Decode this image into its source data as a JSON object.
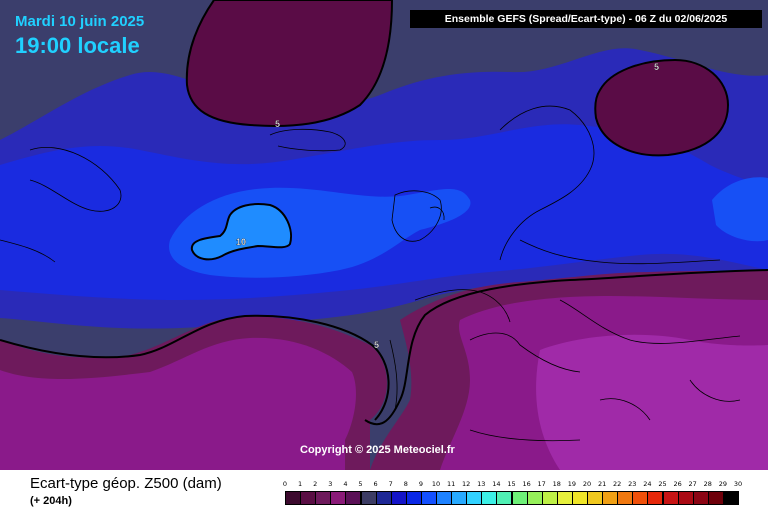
{
  "header": {
    "date": "Mardi 10 juin 2025",
    "time": "19:00 locale",
    "run": "Ensemble GEFS  (Spread/Ecart-type) - 06 Z du 02/06/2025"
  },
  "map": {
    "copyright": "Copyright © 2025 Meteociel.fr",
    "contour_labels": [
      "5",
      "5",
      "5",
      "10"
    ]
  },
  "footer": {
    "parameter": "Ecart-type géop. Z500 (dam)",
    "lead_time": "(+ 204h)"
  },
  "legend": {
    "ticks": [
      "0",
      "1",
      "2",
      "3",
      "4",
      "5",
      "6",
      "7",
      "8",
      "9",
      "10",
      "11",
      "12",
      "13",
      "14",
      "15",
      "16",
      "17",
      "18",
      "19",
      "20",
      "21",
      "22",
      "23",
      "24",
      "25",
      "26",
      "27",
      "28",
      "29",
      "30"
    ],
    "colors": [
      "#3c0a2e",
      "#5a0e44",
      "#6e1a5c",
      "#8a1a78",
      "#5a1056",
      "#3c3c64",
      "#1e2896",
      "#1414c8",
      "#0a28e6",
      "#1450ff",
      "#1e82ff",
      "#28aaff",
      "#32d2ff",
      "#3cf0e6",
      "#50f0b4",
      "#6ef078",
      "#96f05a",
      "#bef046",
      "#e6f03c",
      "#f0e628",
      "#f0c81e",
      "#f0a014",
      "#f0780f",
      "#f0500a",
      "#e6280a",
      "#c81414",
      "#aa0a14",
      "#8c0514",
      "#6e000a",
      "#000000"
    ]
  }
}
